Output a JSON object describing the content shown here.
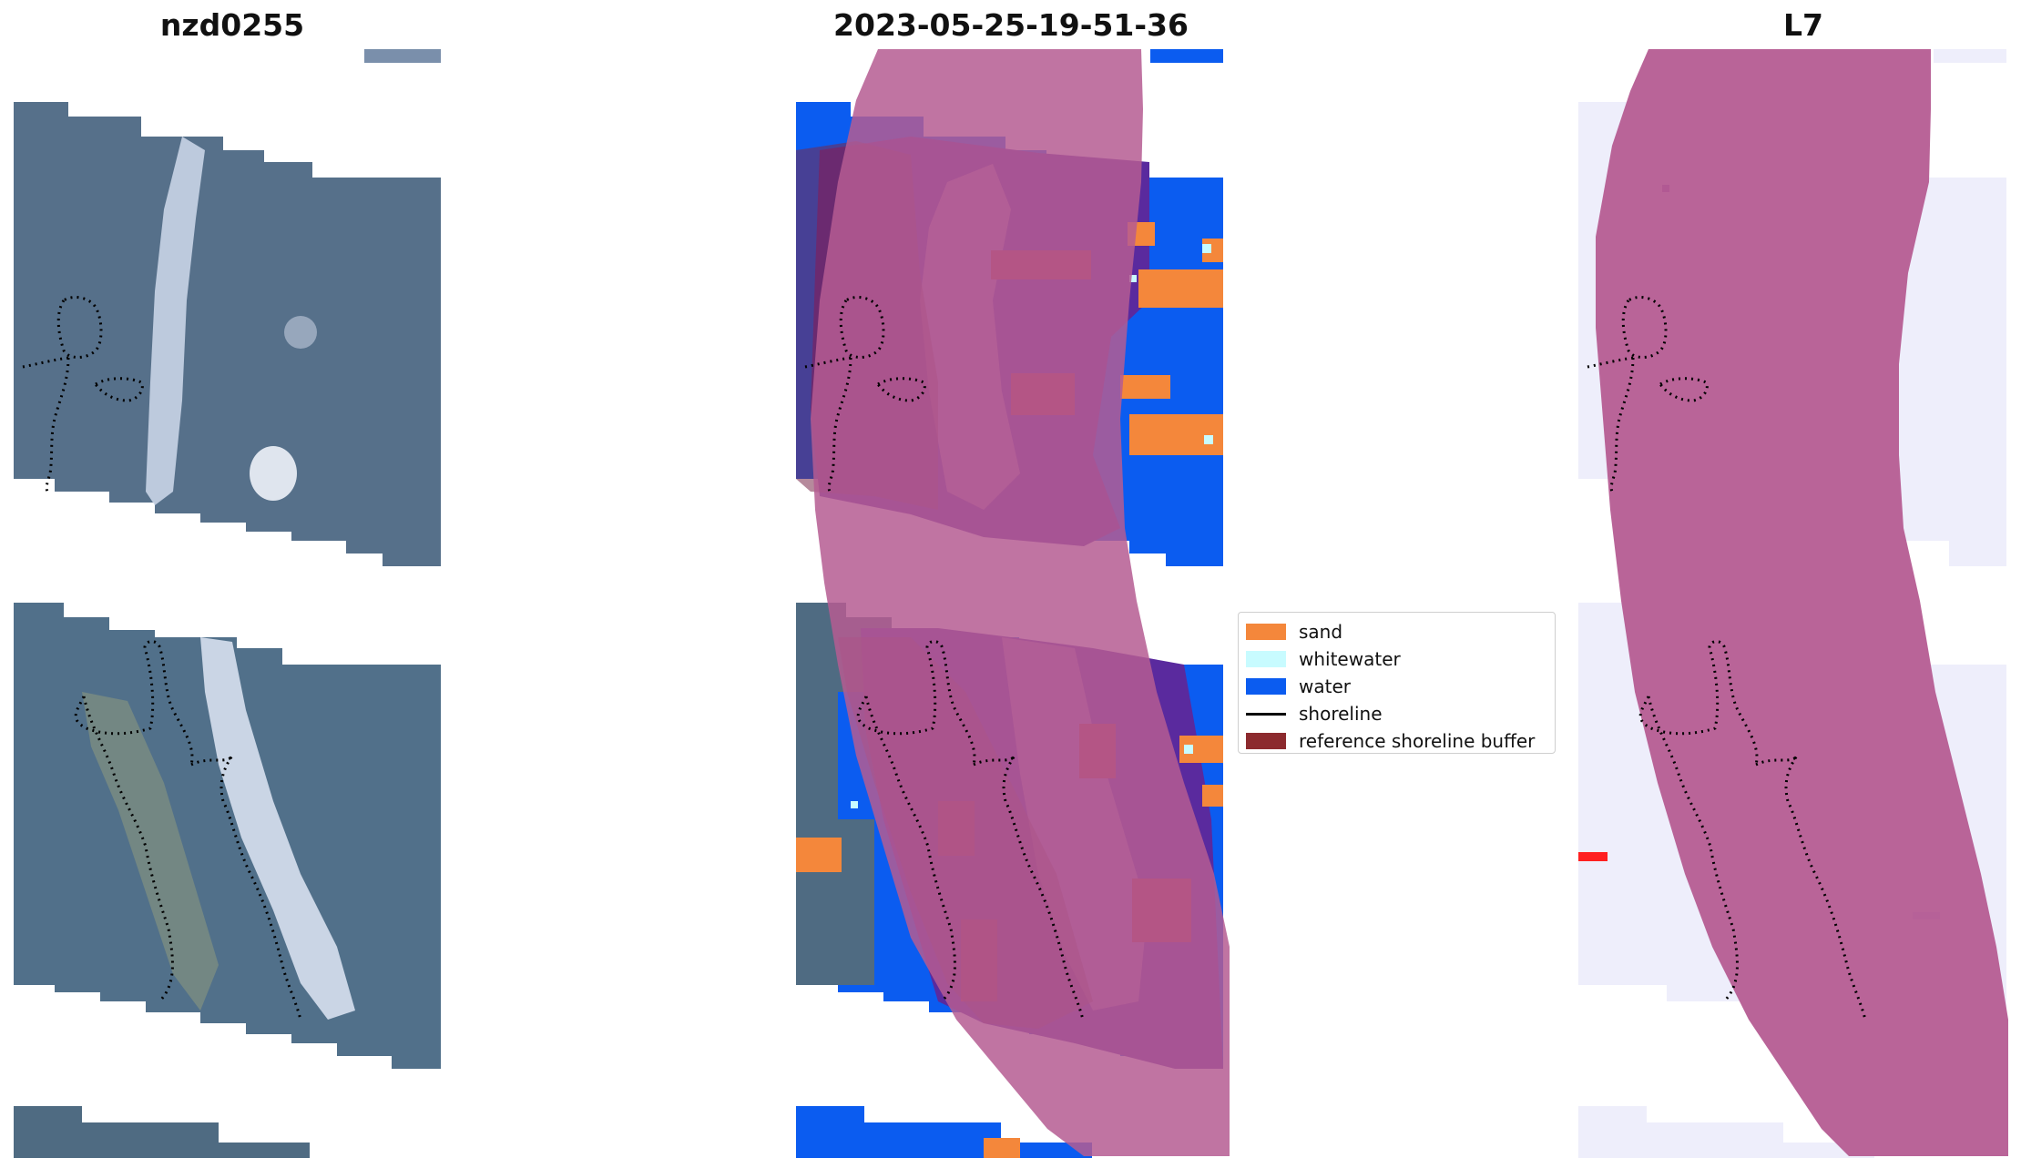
{
  "panels": {
    "left_title": "nzd0255",
    "middle_title": "2023-05-25-19-51-36",
    "right_title": "L7"
  },
  "legend": {
    "items": [
      {
        "label": "sand",
        "color": "#f4873b",
        "kind": "patch"
      },
      {
        "label": "whitewater",
        "color": "#c8fbff",
        "kind": "patch"
      },
      {
        "label": "water",
        "color": "#0b5cf0",
        "kind": "patch"
      },
      {
        "label": "shoreline",
        "color": "#000000",
        "kind": "line"
      },
      {
        "label": "reference shoreline buffer",
        "color": "#8c2a2e",
        "kind": "patch"
      }
    ]
  },
  "colors": {
    "imagery_base": "#56708a",
    "imagery_bright": "#c9d4e6",
    "water": "#0b5cf0",
    "sand": "#f4873b",
    "class_purple": "#5a2a9e",
    "buffer_overlay": "#b55c92",
    "index_background": "#eeeefb",
    "index_red": "#ff2020"
  }
}
